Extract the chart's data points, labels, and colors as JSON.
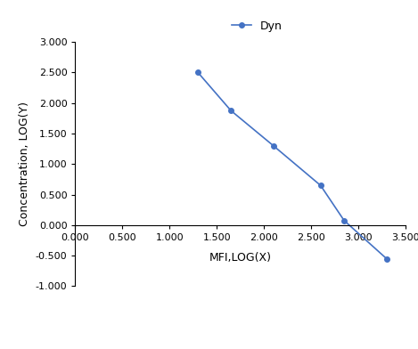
{
  "x": [
    1.3,
    1.65,
    2.1,
    2.6,
    2.85,
    3.3
  ],
  "y": [
    2.5,
    1.875,
    1.3,
    0.65,
    0.075,
    -0.55
  ],
  "line_color": "#4472C4",
  "marker": "o",
  "marker_size": 4,
  "legend_label": "Dyn",
  "xlabel": "MFI,LOG(X)",
  "ylabel": "Concentration, LOG(Y)",
  "xlim": [
    0.0,
    3.5
  ],
  "ylim": [
    -1.0,
    3.0
  ],
  "xticks": [
    0.0,
    0.5,
    1.0,
    1.5,
    2.0,
    2.5,
    3.0,
    3.5
  ],
  "yticks": [
    -1.0,
    -0.5,
    0.0,
    0.5,
    1.0,
    1.5,
    2.0,
    2.5,
    3.0
  ],
  "background_color": "#ffffff",
  "axis_label_fontsize": 9,
  "tick_fontsize": 8,
  "legend_fontsize": 9,
  "zero_line_color": "#000000",
  "spine_color": "#000000"
}
